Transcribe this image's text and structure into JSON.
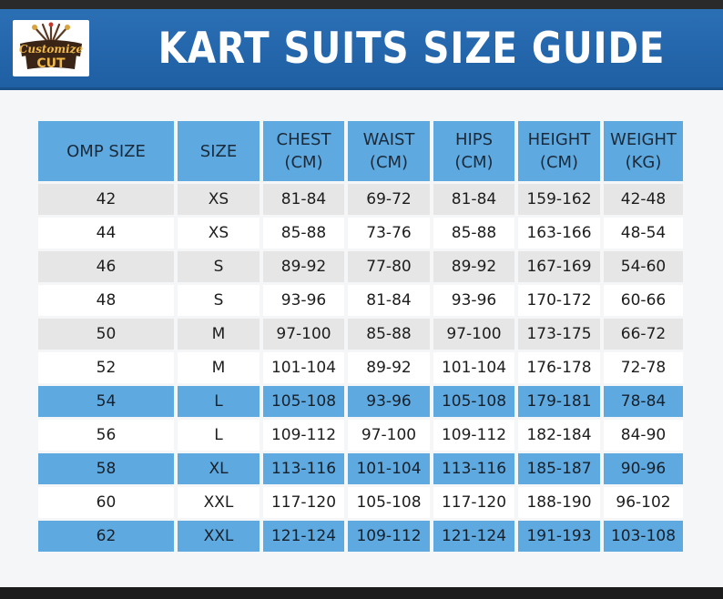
{
  "title": "KART SUITS SIZE GUIDE",
  "logo": {
    "line1": "Customize",
    "line2": "CUT"
  },
  "colors": {
    "header": "#2366aa",
    "accent_blue": "#5ea9df",
    "row_grey": "#e6e6e6"
  },
  "table": {
    "headers": [
      {
        "line1": "OMP SIZE",
        "line2": ""
      },
      {
        "line1": "SIZE",
        "line2": ""
      },
      {
        "line1": "CHEST",
        "line2": "(CM)"
      },
      {
        "line1": "WAIST",
        "line2": "(CM)"
      },
      {
        "line1": "HIPS",
        "line2": "(CM)"
      },
      {
        "line1": "HEIGHT",
        "line2": "(CM)"
      },
      {
        "line1": "WEIGHT",
        "line2": "(KG)"
      }
    ],
    "rows": [
      {
        "style": "shade",
        "cells": [
          "42",
          "XS",
          "81-84",
          "69-72",
          "81-84",
          "159-162",
          "42-48"
        ]
      },
      {
        "style": "plain",
        "cells": [
          "44",
          "XS",
          "85-88",
          "73-76",
          "85-88",
          "163-166",
          "48-54"
        ]
      },
      {
        "style": "shade",
        "cells": [
          "46",
          "S",
          "89-92",
          "77-80",
          "89-92",
          "167-169",
          "54-60"
        ]
      },
      {
        "style": "plain",
        "cells": [
          "48",
          "S",
          "93-96",
          "81-84",
          "93-96",
          "170-172",
          "60-66"
        ]
      },
      {
        "style": "shade",
        "cells": [
          "50",
          "M",
          "97-100",
          "85-88",
          "97-100",
          "173-175",
          "66-72"
        ]
      },
      {
        "style": "plain",
        "cells": [
          "52",
          "M",
          "101-104",
          "89-92",
          "101-104",
          "176-178",
          "72-78"
        ]
      },
      {
        "style": "blue",
        "cells": [
          "54",
          "L",
          "105-108",
          "93-96",
          "105-108",
          "179-181",
          "78-84"
        ]
      },
      {
        "style": "plain",
        "cells": [
          "56",
          "L",
          "109-112",
          "97-100",
          "109-112",
          "182-184",
          "84-90"
        ]
      },
      {
        "style": "blue",
        "cells": [
          "58",
          "XL",
          "113-116",
          "101-104",
          "113-116",
          "185-187",
          "90-96"
        ]
      },
      {
        "style": "plain",
        "cells": [
          "60",
          "XXL",
          "117-120",
          "105-108",
          "117-120",
          "188-190",
          "96-102"
        ]
      },
      {
        "style": "blue",
        "cells": [
          "62",
          "XXL",
          "121-124",
          "109-112",
          "121-124",
          "191-193",
          "103-108"
        ]
      }
    ]
  }
}
